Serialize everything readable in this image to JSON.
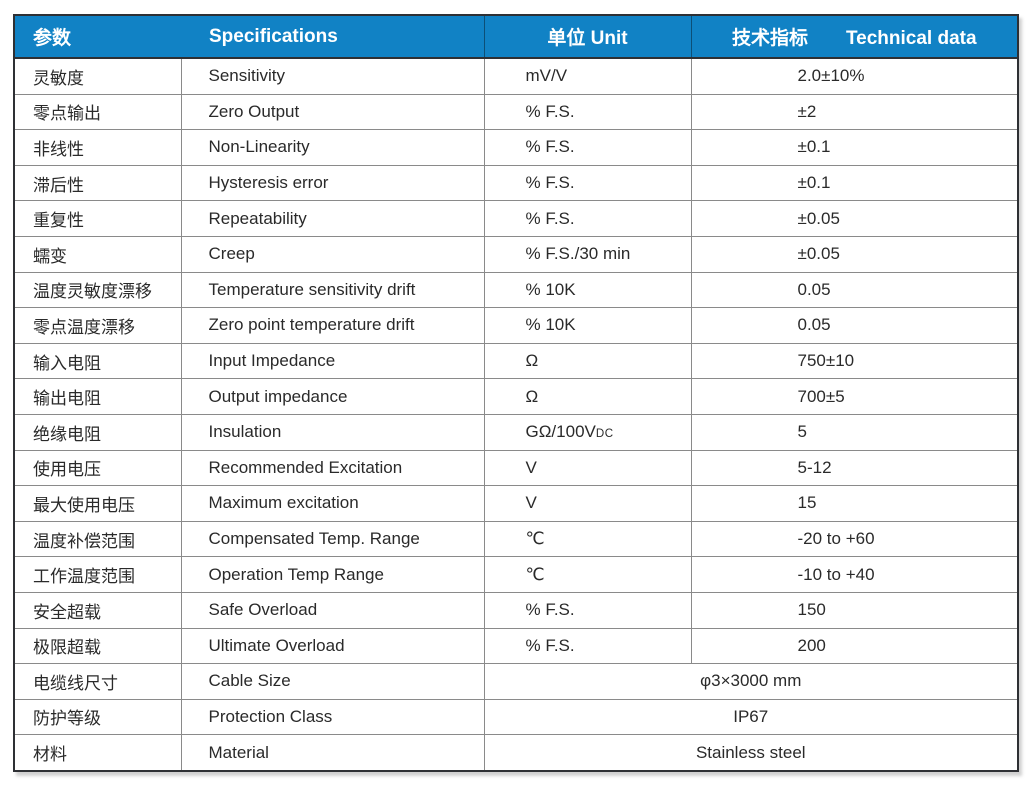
{
  "table": {
    "headers": {
      "param": "参数",
      "spec": "Specifications",
      "unit": "单位 Unit",
      "tech_cn": "技术指标",
      "tech_en": "Technical data"
    },
    "rows": [
      {
        "param": "灵敏度",
        "spec": "Sensitivity",
        "unit": "mV/V",
        "value": "2.0±10%"
      },
      {
        "param": "零点输出",
        "spec": "Zero Output",
        "unit": "% F.S.",
        "value": "±2"
      },
      {
        "param": "非线性",
        "spec": "Non-Linearity",
        "unit": "% F.S.",
        "value": "±0.1"
      },
      {
        "param": "滞后性",
        "spec": "Hysteresis error",
        "unit": "% F.S.",
        "value": "±0.1"
      },
      {
        "param": "重复性",
        "spec": "Repeatability",
        "unit": "% F.S.",
        "value": "±0.05"
      },
      {
        "param": "蠕变",
        "spec": "Creep",
        "unit": "% F.S./30 min",
        "value": "±0.05"
      },
      {
        "param": "温度灵敏度漂移",
        "spec": "Temperature sensitivity drift",
        "unit": "% 10K",
        "value": "0.05"
      },
      {
        "param": "零点温度漂移",
        "spec": "Zero point temperature drift",
        "unit": "% 10K",
        "value": "0.05"
      },
      {
        "param": "输入电阻",
        "spec": "Input Impedance",
        "unit": "Ω",
        "value": "750±10"
      },
      {
        "param": "输出电阻",
        "spec": "Output impedance",
        "unit": "Ω",
        "value": "700±5"
      },
      {
        "param": "绝缘电阻",
        "spec": "Insulation",
        "unit": "GΩ/100V",
        "unit_suffix_small": "DC",
        "value": "5"
      },
      {
        "param": "使用电压",
        "spec": "Recommended Excitation",
        "unit": "V",
        "value": "5-12"
      },
      {
        "param": "最大使用电压",
        "spec": "Maximum excitation",
        "unit": "V",
        "value": "15"
      },
      {
        "param": "温度补偿范围",
        "spec": "Compensated Temp. Range",
        "unit": "℃",
        "value": "-20 to +60"
      },
      {
        "param": "工作温度范围",
        "spec": "Operation Temp Range",
        "unit": "℃",
        "value": "-10 to +40"
      },
      {
        "param": "安全超载",
        "spec": "Safe Overload",
        "unit": "% F.S.",
        "value": "150"
      },
      {
        "param": "极限超载",
        "spec": "Ultimate Overload",
        "unit": "% F.S.",
        "value": "200"
      },
      {
        "param": "电缆线尺寸",
        "spec": "Cable Size",
        "merged_value": "φ3×3000 mm"
      },
      {
        "param": "防护等级",
        "spec": "Protection Class",
        "merged_value": "IP67"
      },
      {
        "param": "材料",
        "spec": "Material",
        "merged_value": "Stainless steel"
      }
    ]
  },
  "colors": {
    "header_bg": "#1182c5",
    "header_text": "#ffffff",
    "outer_border": "#2e3034",
    "grid_line": "#8a8a8a",
    "body_text": "#2a2a2a"
  }
}
